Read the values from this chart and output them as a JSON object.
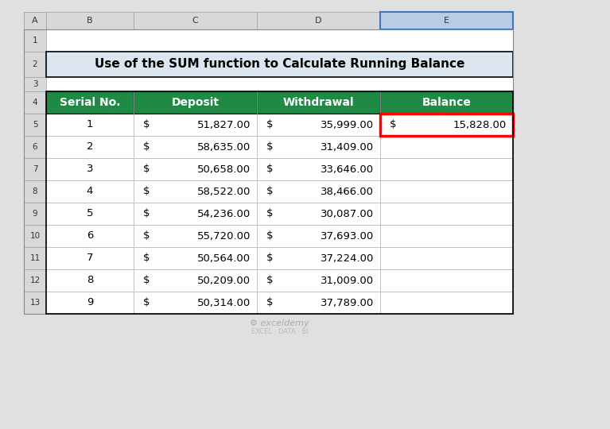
{
  "title": "Use of the SUM function to Calculate Running Balance",
  "col_headers": [
    "Serial No.",
    "Deposit",
    "Withdrawal",
    "Balance"
  ],
  "rows": [
    [
      1,
      "$ 51,827.00",
      "$ 35,999.00",
      "$ 15,828.00"
    ],
    [
      2,
      "$ 58,635.00",
      "$ 31,409.00",
      ""
    ],
    [
      3,
      "$ 50,658.00",
      "$ 33,646.00",
      ""
    ],
    [
      4,
      "$ 58,522.00",
      "$ 38,466.00",
      ""
    ],
    [
      5,
      "$ 54,236.00",
      "$ 30,087.00",
      ""
    ],
    [
      6,
      "$ 55,720.00",
      "$ 37,693.00",
      ""
    ],
    [
      7,
      "$ 50,564.00",
      "$ 37,224.00",
      ""
    ],
    [
      8,
      "$ 50,209.00",
      "$ 31,009.00",
      ""
    ],
    [
      9,
      "$ 50,314.00",
      "$ 37,789.00",
      ""
    ]
  ],
  "header_bg": "#1E8A44",
  "header_text_color": "#FFFFFF",
  "title_bg": "#DCE6F1",
  "title_border": "#000000",
  "grid_color": "#000000",
  "cell_bg": "#FFFFFF",
  "row_numbers": [
    "1",
    "2",
    "3",
    "4",
    "5",
    "6",
    "7",
    "8",
    "9",
    "10",
    "11",
    "12",
    "13"
  ],
  "col_letters": [
    "A",
    "B",
    "C",
    "D",
    "E"
  ],
  "balance_highlight_border": "#FF0000",
  "spreadsheet_bg": "#FFFFFF",
  "outer_bg": "#E0E0E0",
  "watermark": "exceldemy",
  "watermark_sub": "EXCEL · DATA · BI"
}
